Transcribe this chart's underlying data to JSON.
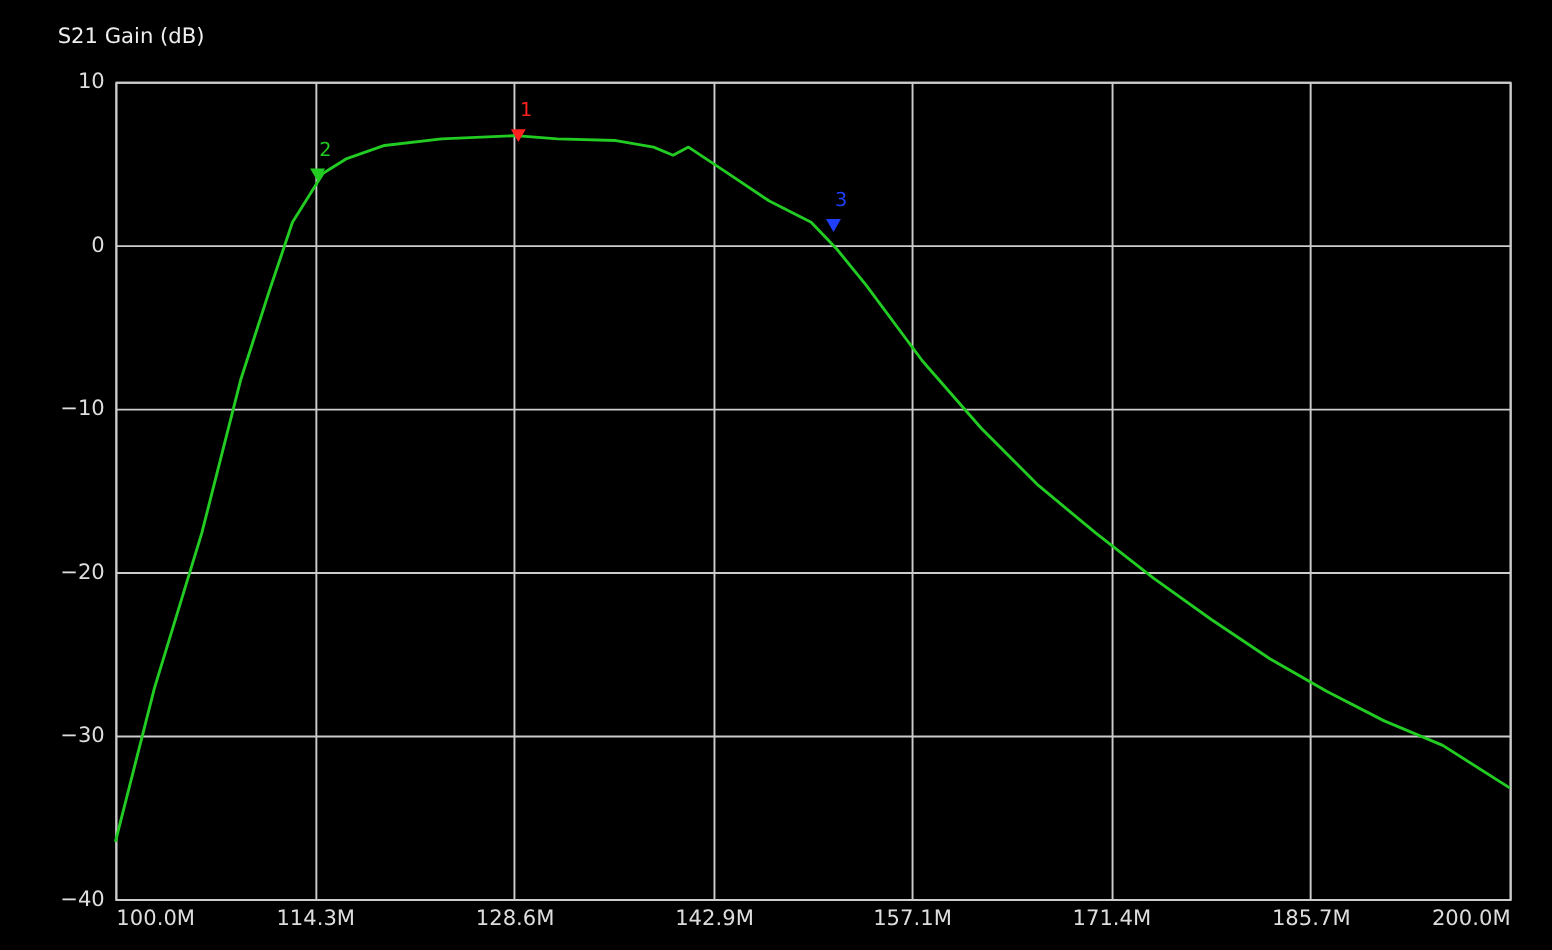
{
  "chart_data": {
    "type": "line",
    "title": "S21 Gain (dB)",
    "xlim": [
      100,
      200
    ],
    "xticks": [
      {
        "value": 100,
        "label": "100.0M"
      },
      {
        "value": 114.3,
        "label": "114.3M"
      },
      {
        "value": 128.6,
        "label": "128.6M"
      },
      {
        "value": 142.9,
        "label": "142.9M"
      },
      {
        "value": 157.1,
        "label": "157.1M"
      },
      {
        "value": 171.4,
        "label": "171.4M"
      },
      {
        "value": 185.7,
        "label": "185.7M"
      },
      {
        "value": 200,
        "label": "200.0M"
      }
    ],
    "ylim": [
      -40,
      10
    ],
    "yticks": [
      -40,
      -30,
      -20,
      -10,
      0,
      10
    ],
    "grid": true,
    "line_style": "solid",
    "series": [
      {
        "color": "#22cc22",
        "x": [
          100,
          102.8,
          106.2,
          109.0,
          111.0,
          112.7,
          114.9,
          116.6,
          119.3,
          123.4,
          128.7,
          131.7,
          135.9,
          138.6,
          140.0,
          141.1,
          143.4,
          146.9,
          149.9,
          151.7,
          153.8,
          157.9,
          162.1,
          166.2,
          170.3,
          174.5,
          178.6,
          182.8,
          186.9,
          191.0,
          195.2,
          200
        ],
        "values": [
          -36.5,
          -27.1,
          -17.6,
          -8.2,
          -2.9,
          1.4,
          4.4,
          5.3,
          6.1,
          6.5,
          6.7,
          6.5,
          6.4,
          6.0,
          5.5,
          6.0,
          4.7,
          2.7,
          1.4,
          -0.2,
          -2.4,
          -7.1,
          -11.2,
          -14.7,
          -17.6,
          -20.4,
          -22.9,
          -25.3,
          -27.3,
          -29.1,
          -30.6,
          -33.2
        ]
      },
      {
        "type": "scatter",
        "marker": "triangle",
        "color": "#ff2020",
        "x": [
          128.9
        ],
        "values": [
          6.7
        ]
      },
      {
        "type": "scatter",
        "marker": "triangle",
        "color": "#22cc22",
        "x": [
          114.5
        ],
        "values": [
          4.3
        ]
      },
      {
        "type": "scatter",
        "marker": "triangle",
        "color": "#2040ff",
        "x": [
          151.5
        ],
        "values": [
          1.2
        ]
      }
    ],
    "annotations": [
      {
        "text": "1",
        "x": 128.9,
        "y": 6.7
      },
      {
        "text": "2",
        "x": 114.5,
        "y": 4.3
      },
      {
        "text": "3",
        "x": 151.5,
        "y": 1.2
      }
    ]
  }
}
